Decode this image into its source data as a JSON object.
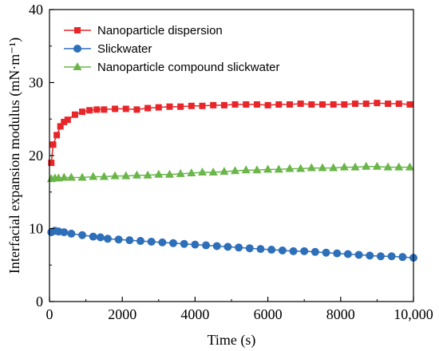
{
  "chart_data": {
    "type": "line",
    "title": "",
    "xlabel": "Time (s)",
    "ylabel": "Interfacial expansion modulus (mN·m⁻¹)",
    "xlim": [
      0,
      10000
    ],
    "ylim": [
      0,
      40
    ],
    "x_ticks": [
      0,
      2000,
      4000,
      6000,
      8000,
      10000
    ],
    "x_tick_labels": [
      "0",
      "2000",
      "4000",
      "6000",
      "8000",
      "10,000"
    ],
    "y_ticks": [
      0,
      10,
      20,
      30,
      40
    ],
    "y_tick_labels": [
      "0",
      "10",
      "20",
      "30",
      "40"
    ],
    "grid": false,
    "legend_position": "top-left",
    "series": [
      {
        "name": "Nanoparticle dispersion",
        "color": "#e8262a",
        "marker": "square",
        "points": [
          [
            50,
            19.0
          ],
          [
            100,
            21.5
          ],
          [
            200,
            22.8
          ],
          [
            300,
            24.0
          ],
          [
            400,
            24.6
          ],
          [
            500,
            24.9
          ],
          [
            700,
            25.6
          ],
          [
            900,
            26.0
          ],
          [
            1100,
            26.2
          ],
          [
            1300,
            26.3
          ],
          [
            1500,
            26.3
          ],
          [
            1800,
            26.4
          ],
          [
            2100,
            26.4
          ],
          [
            2400,
            26.3
          ],
          [
            2700,
            26.5
          ],
          [
            3000,
            26.6
          ],
          [
            3300,
            26.7
          ],
          [
            3600,
            26.7
          ],
          [
            3900,
            26.8
          ],
          [
            4200,
            26.8
          ],
          [
            4500,
            26.9
          ],
          [
            4800,
            26.9
          ],
          [
            5100,
            27.0
          ],
          [
            5400,
            27.0
          ],
          [
            5700,
            27.0
          ],
          [
            6000,
            26.9
          ],
          [
            6300,
            27.0
          ],
          [
            6600,
            27.0
          ],
          [
            6900,
            27.1
          ],
          [
            7200,
            27.0
          ],
          [
            7500,
            27.0
          ],
          [
            7800,
            27.0
          ],
          [
            8100,
            27.0
          ],
          [
            8400,
            27.1
          ],
          [
            8700,
            27.1
          ],
          [
            9000,
            27.2
          ],
          [
            9300,
            27.1
          ],
          [
            9600,
            27.1
          ],
          [
            9900,
            27.0
          ]
        ]
      },
      {
        "name": "Slickwater",
        "color": "#2e6fba",
        "marker": "circle",
        "points": [
          [
            50,
            9.5
          ],
          [
            150,
            9.7
          ],
          [
            250,
            9.6
          ],
          [
            400,
            9.5
          ],
          [
            600,
            9.3
          ],
          [
            900,
            9.1
          ],
          [
            1200,
            8.9
          ],
          [
            1400,
            8.8
          ],
          [
            1600,
            8.6
          ],
          [
            1900,
            8.5
          ],
          [
            2200,
            8.4
          ],
          [
            2500,
            8.3
          ],
          [
            2800,
            8.2
          ],
          [
            3100,
            8.1
          ],
          [
            3400,
            8.0
          ],
          [
            3700,
            7.9
          ],
          [
            4000,
            7.8
          ],
          [
            4300,
            7.7
          ],
          [
            4600,
            7.6
          ],
          [
            4900,
            7.5
          ],
          [
            5200,
            7.4
          ],
          [
            5500,
            7.3
          ],
          [
            5800,
            7.2
          ],
          [
            6100,
            7.1
          ],
          [
            6400,
            7.0
          ],
          [
            6700,
            6.9
          ],
          [
            7000,
            6.9
          ],
          [
            7300,
            6.8
          ],
          [
            7600,
            6.7
          ],
          [
            7900,
            6.6
          ],
          [
            8200,
            6.5
          ],
          [
            8500,
            6.4
          ],
          [
            8800,
            6.3
          ],
          [
            9100,
            6.2
          ],
          [
            9400,
            6.2
          ],
          [
            9700,
            6.1
          ],
          [
            10000,
            6.0
          ]
        ]
      },
      {
        "name": "Nanoparticle compound slickwater",
        "color": "#6ab64a",
        "marker": "triangle",
        "points": [
          [
            50,
            16.8
          ],
          [
            150,
            16.9
          ],
          [
            250,
            16.9
          ],
          [
            400,
            17.0
          ],
          [
            600,
            17.0
          ],
          [
            900,
            17.0
          ],
          [
            1200,
            17.1
          ],
          [
            1500,
            17.1
          ],
          [
            1800,
            17.2
          ],
          [
            2100,
            17.2
          ],
          [
            2400,
            17.3
          ],
          [
            2700,
            17.3
          ],
          [
            3000,
            17.4
          ],
          [
            3300,
            17.4
          ],
          [
            3600,
            17.5
          ],
          [
            3900,
            17.6
          ],
          [
            4200,
            17.7
          ],
          [
            4500,
            17.7
          ],
          [
            4800,
            17.8
          ],
          [
            5100,
            17.9
          ],
          [
            5400,
            18.0
          ],
          [
            5700,
            18.0
          ],
          [
            6000,
            18.1
          ],
          [
            6300,
            18.1
          ],
          [
            6600,
            18.2
          ],
          [
            6900,
            18.2
          ],
          [
            7200,
            18.3
          ],
          [
            7500,
            18.3
          ],
          [
            7800,
            18.3
          ],
          [
            8100,
            18.4
          ],
          [
            8400,
            18.4
          ],
          [
            8700,
            18.5
          ],
          [
            9000,
            18.5
          ],
          [
            9300,
            18.4
          ],
          [
            9600,
            18.4
          ],
          [
            9900,
            18.4
          ]
        ]
      }
    ]
  }
}
